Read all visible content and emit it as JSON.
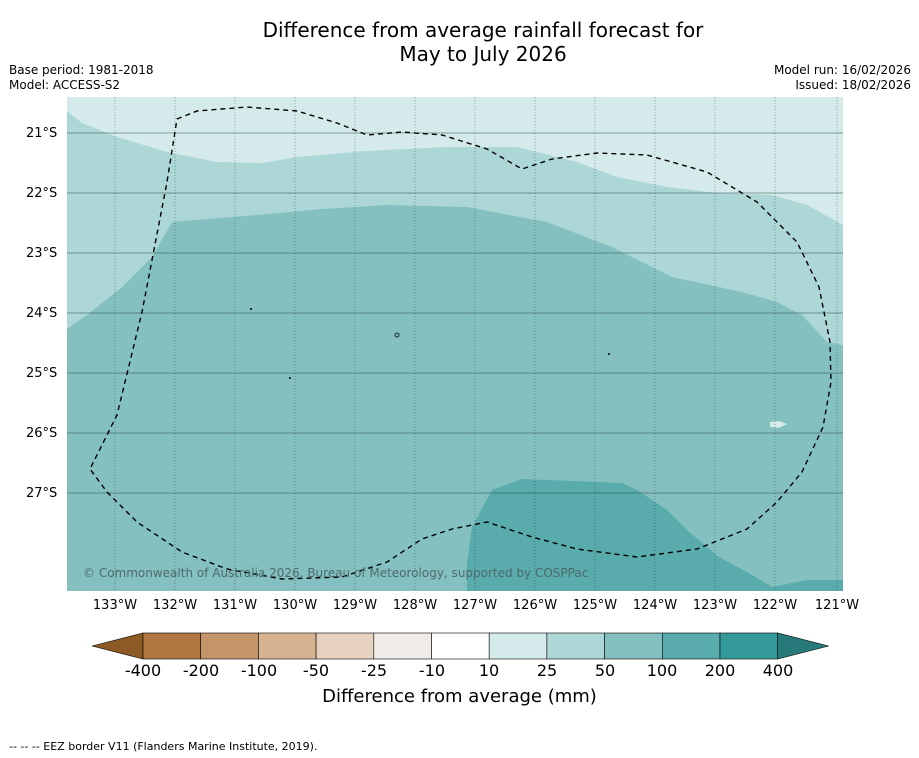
{
  "header": {
    "title_line1": "Difference from average rainfall forecast for",
    "title_line2": "May to July 2026",
    "base_period": "Base period: 1981-2018",
    "model": "Model: ACCESS-S2",
    "model_run": "Model run: 16/02/2026",
    "issued": "Issued: 18/02/2026"
  },
  "map": {
    "latitude_labels": [
      "21°S",
      "22°S",
      "23°S",
      "24°S",
      "25°S",
      "26°S",
      "27°S"
    ],
    "longitude_labels": [
      "133°W",
      "132°W",
      "131°W",
      "130°W",
      "129°W",
      "128°W",
      "127°W",
      "126°W",
      "125°W",
      "124°W",
      "123°W",
      "122°W",
      "121°W"
    ],
    "copyright": "© Commonwealth of Australia 2026, Bureau of Meteorology, supported by COSPPac",
    "region_colors": {
      "band_10_25": "#d5eaea",
      "band_25_50": "#add7d7",
      "band_50_100": "#84c0c0",
      "band_100_200": "#5aabab"
    }
  },
  "legend": {
    "title": "Difference from average (mm)",
    "ticks": [
      "-400",
      "-200",
      "-100",
      "-50",
      "-25",
      "-10",
      "10",
      "25",
      "50",
      "100",
      "200",
      "400"
    ],
    "colors": [
      "#8c5a24",
      "#b07841",
      "#c39568",
      "#d5b391",
      "#e6d2be",
      "#eeebe8",
      "#ffffff",
      "#d5eaea",
      "#add7d7",
      "#84c0c0",
      "#5aabab",
      "#339999",
      "#287a7a"
    ]
  },
  "footer": {
    "text": "--  --  -- EEZ border V11 (Flanders Marine Institute, 2019)."
  }
}
